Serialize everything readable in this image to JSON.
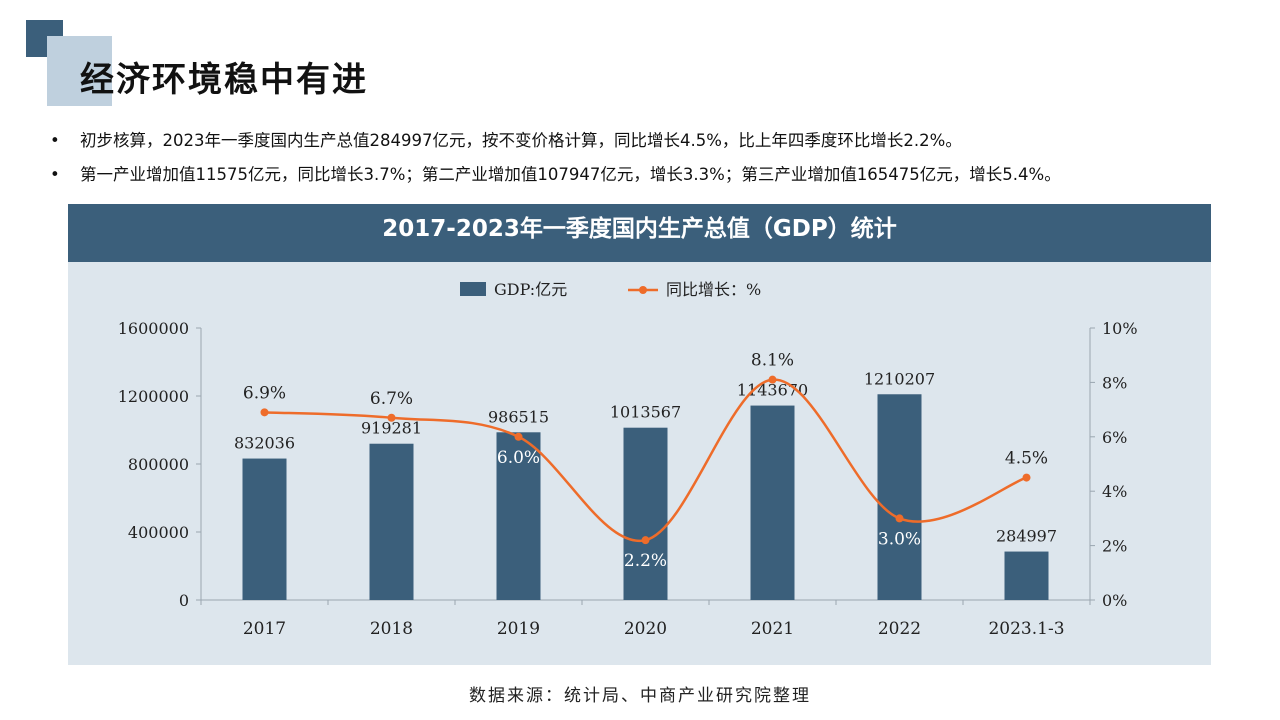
{
  "page": {
    "title": "经济环境稳中有进",
    "bullets": [
      "初步核算，2023年一季度国内生产总值284997亿元，按不变价格计算，同比增长4.5%，比上年四季度环比增长2.2%。",
      "第一产业增加值11575亿元，同比增长3.7%；第二产业增加值107947亿元，增长3.3%；第三产业增加值165475亿元，增长5.4%。"
    ],
    "bullet_symbol": "•",
    "source": "数据来源：统计局、中商产业研究院整理"
  },
  "colors": {
    "accent": "#3b5f7b",
    "accent_light": "#bfd0de",
    "bar": "#3b5f7b",
    "line": "#ee6c2a",
    "panel_bg": "#dde6ed"
  },
  "chart_data": {
    "type": "bar",
    "title": "2017-2023年一季度国内生产总值（GDP）统计",
    "categories": [
      "2017",
      "2018",
      "2019",
      "2020",
      "2021",
      "2022",
      "2023.1-3"
    ],
    "series": [
      {
        "name": "GDP:亿元",
        "type": "bar",
        "axis": "left",
        "values": [
          832036,
          919281,
          986515,
          1013567,
          1143670,
          1210207,
          284997
        ],
        "labels": [
          "832036",
          "919281",
          "986515",
          "1013567",
          "1143670",
          "1210207",
          "284997"
        ]
      },
      {
        "name": "同比增长：%",
        "type": "line",
        "axis": "right",
        "smooth": true,
        "values": [
          6.9,
          6.7,
          6.0,
          2.2,
          8.1,
          3.0,
          4.5
        ],
        "labels": [
          "6.9%",
          "6.7%",
          "6.0%",
          "2.2%",
          "8.1%",
          "3.0%",
          "4.5%"
        ]
      }
    ],
    "y_left": {
      "min": 0,
      "max": 1600000,
      "ticks": [
        "0",
        "400000",
        "800000",
        "1200000",
        "1600000"
      ],
      "tick_values": [
        0,
        400000,
        800000,
        1200000,
        1600000
      ]
    },
    "y_right": {
      "min": 0,
      "max": 10,
      "ticks": [
        "0%",
        "2%",
        "4%",
        "6%",
        "8%",
        "10%"
      ],
      "tick_values": [
        0,
        2,
        4,
        6,
        8,
        10
      ]
    },
    "legend_position": "top",
    "grid": false
  }
}
